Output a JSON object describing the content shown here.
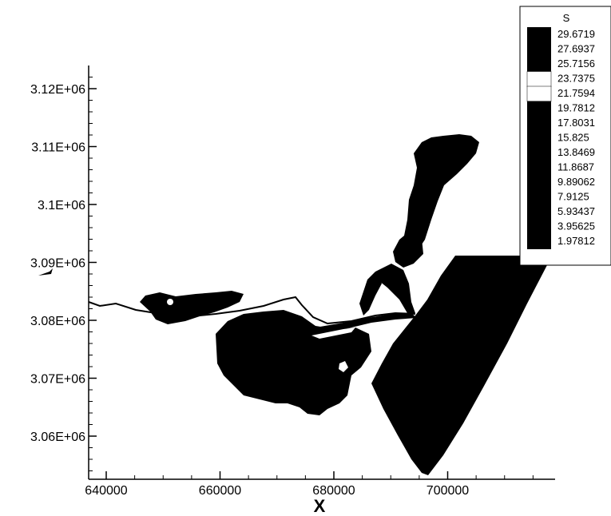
{
  "map": {
    "variable_name": "S",
    "x_axis_title": "X",
    "x_ticks": [
      "640000",
      "660000",
      "680000",
      "700000"
    ],
    "y_ticks": [
      "3.06E+06",
      "3.07E+06",
      "3.08E+06",
      "3.09E+06",
      "3.1E+06",
      "3.11E+06",
      "3.12E+06"
    ],
    "x_range": [
      637500,
      716000
    ],
    "y_range": [
      3053000,
      3128000
    ],
    "contour_fill_color": "#000000",
    "background_color": "#ffffff"
  },
  "legend": {
    "title": "S",
    "position": "top-right",
    "levels": [
      "29.6719",
      "27.6937",
      "25.7156",
      "23.7375",
      "21.7594",
      "19.7812",
      "17.8031",
      "15.825",
      "13.8469",
      "11.8687",
      "9.89062",
      "7.9125",
      "5.93437",
      "3.95625",
      "1.97812"
    ]
  }
}
